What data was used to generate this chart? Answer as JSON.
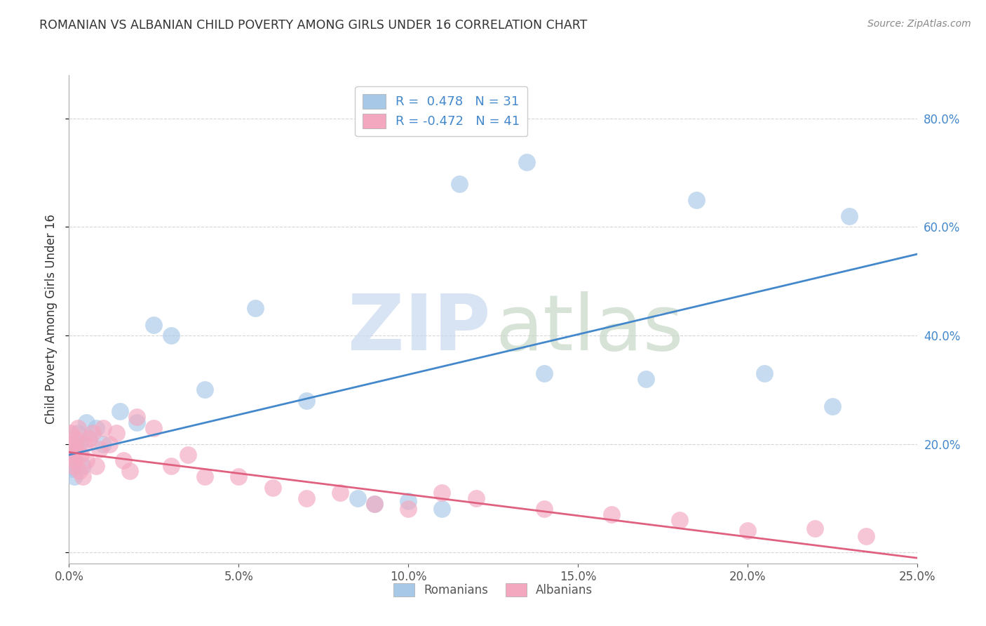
{
  "title": "ROMANIAN VS ALBANIAN CHILD POVERTY AMONG GIRLS UNDER 16 CORRELATION CHART",
  "source": "Source: ZipAtlas.com",
  "ylabel": "Child Poverty Among Girls Under 16",
  "xlim": [
    0.0,
    25.0
  ],
  "ylim": [
    -2.0,
    88.0
  ],
  "romanian_R": "0.478",
  "romanian_N": "31",
  "albanian_R": "-0.472",
  "albanian_N": "41",
  "romanian_color": "#a8c8e8",
  "albanian_color": "#f4a8c0",
  "romanian_line_color": "#4488cc",
  "albanian_line_color": "#e06080",
  "legend_label_romanian": "Romanians",
  "legend_label_albanian": "Albanians",
  "ro_line_x0": 0.0,
  "ro_line_y0": 18.0,
  "ro_line_x1": 25.0,
  "ro_line_y1": 55.0,
  "al_line_x0": 0.0,
  "al_line_y0": 18.5,
  "al_line_x1": 25.0,
  "al_line_y1": -1.0,
  "romanian_x": [
    0.05,
    0.08,
    0.12,
    0.15,
    0.2,
    0.25,
    0.3,
    0.4,
    0.5,
    0.6,
    0.8,
    1.0,
    1.5,
    2.0,
    2.5,
    3.0,
    4.0,
    5.5,
    7.0,
    8.5,
    9.0,
    10.0,
    11.0,
    11.5,
    13.5,
    14.0,
    17.0,
    18.5,
    20.5,
    22.5,
    23.0
  ],
  "romanian_y": [
    17.0,
    15.5,
    18.0,
    14.0,
    19.5,
    22.0,
    20.0,
    16.0,
    24.0,
    21.0,
    23.0,
    20.0,
    26.0,
    24.0,
    42.0,
    40.0,
    30.0,
    45.0,
    28.0,
    10.0,
    9.0,
    9.5,
    8.0,
    68.0,
    72.0,
    33.0,
    32.0,
    65.0,
    33.0,
    27.0,
    62.0
  ],
  "albanian_x": [
    0.05,
    0.08,
    0.1,
    0.12,
    0.15,
    0.18,
    0.2,
    0.25,
    0.3,
    0.35,
    0.4,
    0.45,
    0.5,
    0.6,
    0.7,
    0.8,
    0.9,
    1.0,
    1.2,
    1.4,
    1.6,
    1.8,
    2.0,
    2.5,
    3.0,
    3.5,
    4.0,
    5.0,
    6.0,
    7.0,
    8.0,
    9.0,
    10.0,
    11.0,
    12.0,
    14.0,
    16.0,
    18.0,
    20.0,
    22.0,
    23.5
  ],
  "albanian_y": [
    22.0,
    20.0,
    18.0,
    16.0,
    17.0,
    21.0,
    19.0,
    23.0,
    15.0,
    18.0,
    14.0,
    20.0,
    17.0,
    21.0,
    22.0,
    16.0,
    19.0,
    23.0,
    20.0,
    22.0,
    17.0,
    15.0,
    25.0,
    23.0,
    16.0,
    18.0,
    14.0,
    14.0,
    12.0,
    10.0,
    11.0,
    9.0,
    8.0,
    11.0,
    10.0,
    8.0,
    7.0,
    6.0,
    4.0,
    4.5,
    3.0
  ],
  "grid_color": "#cccccc",
  "yticks_right": [
    0.0,
    20.0,
    40.0,
    60.0,
    80.0
  ],
  "ytick_labels_right": [
    "",
    "20.0%",
    "40.0%",
    "60.0%",
    "80.0%"
  ],
  "xticks": [
    0.0,
    5.0,
    10.0,
    15.0,
    20.0,
    25.0
  ],
  "xtick_labels": [
    "0.0%",
    "5.0%",
    "10.0%",
    "15.0%",
    "20.0%",
    "25.0%"
  ]
}
